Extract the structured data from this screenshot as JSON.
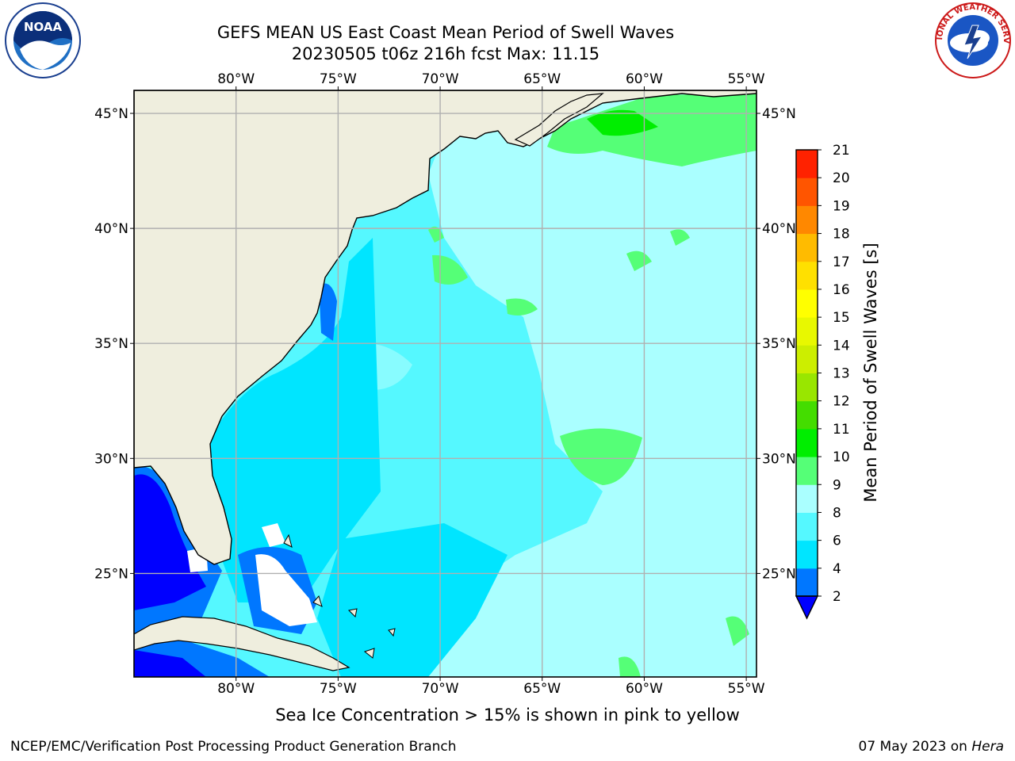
{
  "header": {
    "title_line1": "GEFS MEAN US East Coast Mean Period of Swell Waves",
    "title_line2": "20230505 t06z 216h fcst   Max: 11.15"
  },
  "logos": {
    "noaa_text": "NOAA",
    "nws_text": "NATIONAL WEATHER SERVICE"
  },
  "map": {
    "projection": "cylindrical",
    "lon_range": [
      -85,
      -54.5
    ],
    "lat_range": [
      20.5,
      46
    ],
    "lon_ticks": [
      {
        "value": -80,
        "label": "80°W"
      },
      {
        "value": -75,
        "label": "75°W"
      },
      {
        "value": -70,
        "label": "70°W"
      },
      {
        "value": -65,
        "label": "65°W"
      },
      {
        "value": -60,
        "label": "60°W"
      },
      {
        "value": -55,
        "label": "55°W"
      }
    ],
    "lat_ticks": [
      {
        "value": 45,
        "label": "45°N"
      },
      {
        "value": 40,
        "label": "40°N"
      },
      {
        "value": 35,
        "label": "35°N"
      },
      {
        "value": 30,
        "label": "30°N"
      },
      {
        "value": 25,
        "label": "25°N"
      }
    ],
    "grid": true,
    "land_color": "#efeede",
    "grid_color": "#b0b0b0"
  },
  "colorbar": {
    "label": "Mean Period of Swell Waves [s]",
    "levels": [
      2,
      4,
      6,
      8,
      9,
      10,
      11,
      12,
      13,
      14,
      15,
      16,
      17,
      18,
      19,
      20,
      21
    ],
    "colors": [
      "#0077ff",
      "#00e5ff",
      "#55f8ff",
      "#aaffff",
      "#55ff77",
      "#00ee00",
      "#44dd00",
      "#99e600",
      "#ccee00",
      "#e8f800",
      "#ffff00",
      "#ffe000",
      "#ffbb00",
      "#ff8800",
      "#ff5500",
      "#ff2200"
    ],
    "under_color": "#0000ff",
    "extend": "min"
  },
  "notes": {
    "sea_ice": "Sea Ice Concentration > 15% is shown in pink to yellow"
  },
  "footer": {
    "left": "NCEP/EMC/Verification Post Processing Product Generation Branch",
    "date": "07 May 2023 on ",
    "system": "Hera"
  }
}
